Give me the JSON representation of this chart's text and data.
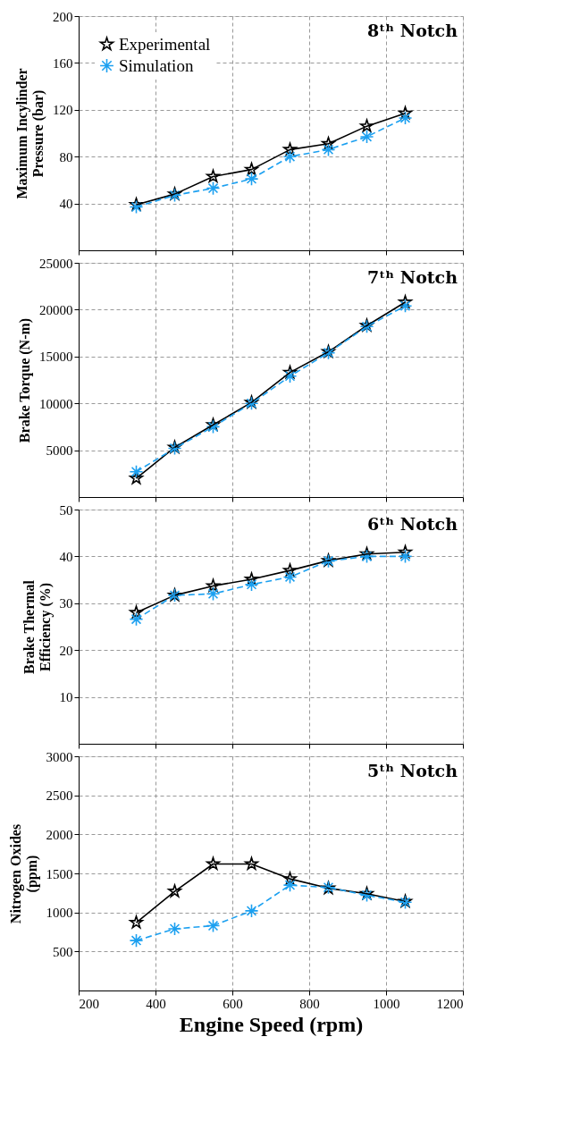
{
  "chart_data": [
    {
      "type": "line",
      "ylabel": "Maximum Incylinder Pressure (bar)",
      "annotations": [
        "8ᵗʰ Notch"
      ],
      "x": [
        350,
        450,
        550,
        650,
        750,
        850,
        950,
        1050
      ],
      "xlim": [
        200,
        1200
      ],
      "xticks": [
        200,
        400,
        600,
        800,
        1000,
        1200
      ],
      "ylim": [
        0,
        200
      ],
      "yticks": [
        40,
        80,
        120,
        160,
        200
      ],
      "grid": true,
      "legend": "top left",
      "tick_labels": "y",
      "series": [
        {
          "name": "Experimental",
          "color": "#000000",
          "marker": "star",
          "line_style": "solid",
          "values": [
            39,
            48,
            63,
            69,
            86,
            91,
            106,
            117
          ]
        },
        {
          "name": "Simulation",
          "color": "#1ca0f0",
          "marker": "cross",
          "line_style": "dashed",
          "values": [
            37,
            47,
            53,
            61,
            80,
            86,
            97,
            113
          ]
        }
      ]
    },
    {
      "type": "line",
      "ylabel": "Brake Torque (N-m)",
      "annotations": [
        "7ᵗʰ Notch"
      ],
      "x": [
        350,
        450,
        550,
        650,
        750,
        850,
        950,
        1050
      ],
      "xlim": [
        200,
        1200
      ],
      "xticks": [
        200,
        400,
        600,
        800,
        1000,
        1200
      ],
      "ylim": [
        0,
        25000
      ],
      "yticks": [
        5000,
        10000,
        15000,
        20000,
        25000
      ],
      "grid": true,
      "tick_labels": "y",
      "series": [
        {
          "color": "#000000",
          "marker": "star",
          "line_style": "solid",
          "values": [
            2000,
            5300,
            7700,
            10100,
            13300,
            15500,
            18300,
            20800
          ]
        },
        {
          "color": "#1ca0f0",
          "marker": "cross",
          "line_style": "dashed",
          "values": [
            2700,
            5200,
            7500,
            10000,
            12900,
            15400,
            18200,
            20400
          ]
        }
      ]
    },
    {
      "type": "line",
      "ylabel": "Brake Thermal Efficiency (%)",
      "annotations": [
        "6ᵗʰ Notch"
      ],
      "x": [
        350,
        450,
        550,
        650,
        750,
        850,
        950,
        1050
      ],
      "xlim": [
        200,
        1200
      ],
      "xticks": [
        200,
        400,
        600,
        800,
        1000,
        1200
      ],
      "ylim": [
        0,
        50
      ],
      "yticks": [
        10,
        20,
        30,
        40,
        50
      ],
      "grid": true,
      "tick_labels": "y",
      "series": [
        {
          "color": "#000000",
          "marker": "star",
          "line_style": "solid",
          "values": [
            28,
            31.7,
            33.7,
            35.1,
            37,
            39.1,
            40.5,
            40.9
          ]
        },
        {
          "color": "#1ca0f0",
          "marker": "cross",
          "line_style": "dashed",
          "values": [
            26.6,
            31.7,
            32,
            34,
            35.6,
            39,
            40,
            40
          ]
        }
      ]
    },
    {
      "type": "line",
      "xlabel": "Engine Speed (rpm)",
      "ylabel": "Nitrogen Oxides (ppm)",
      "annotations": [
        "5ᵗʰ Notch"
      ],
      "x": [
        350,
        450,
        550,
        650,
        750,
        850,
        950,
        1050
      ],
      "xlim": [
        200,
        1200
      ],
      "xticks": [
        200,
        400,
        600,
        800,
        1000,
        1200
      ],
      "ylim": [
        0,
        3000
      ],
      "yticks": [
        500,
        1000,
        1500,
        2000,
        2500,
        3000
      ],
      "grid": true,
      "series": [
        {
          "color": "#000000",
          "marker": "star",
          "line_style": "solid",
          "values": [
            870,
            1270,
            1620,
            1620,
            1430,
            1310,
            1240,
            1140
          ]
        },
        {
          "color": "#1ca0f0",
          "marker": "cross",
          "line_style": "dashed",
          "values": [
            640,
            790,
            830,
            1020,
            1350,
            1320,
            1220,
            1130
          ]
        }
      ]
    }
  ]
}
